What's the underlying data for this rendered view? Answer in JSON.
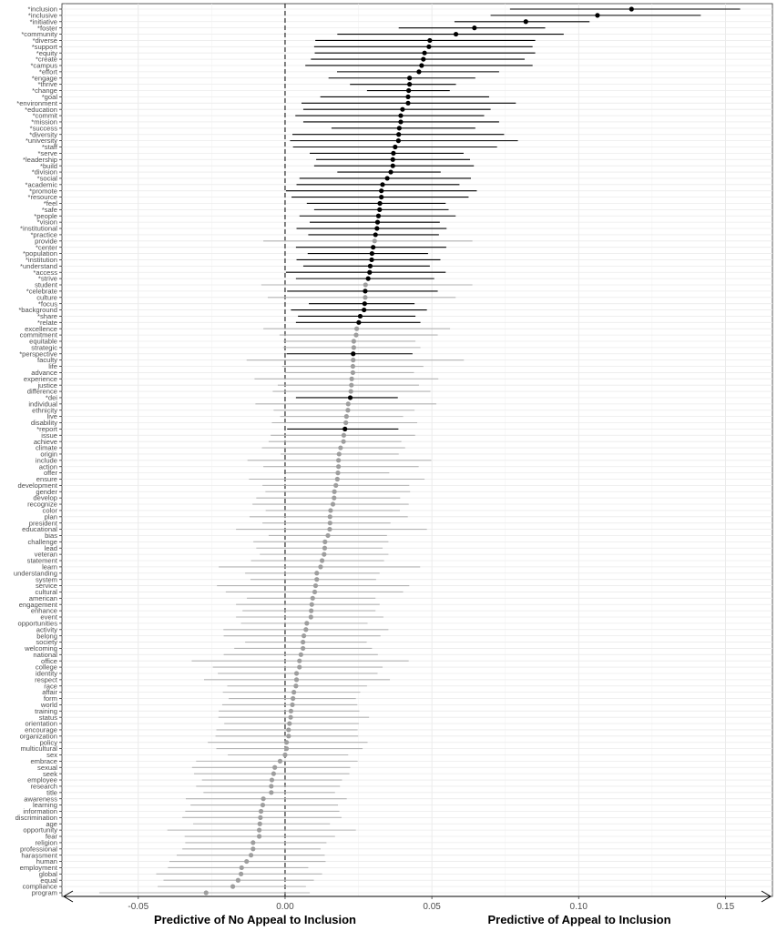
{
  "chart_data": {
    "type": "forest",
    "xlabel_left": "Predictive of No Appeal to Inclusion",
    "xlabel_right": "Predictive of Appeal to Inclusion",
    "xlim": [
      -0.076,
      0.166
    ],
    "xticks": [
      -0.05,
      0.0,
      0.05,
      0.1,
      0.15
    ],
    "xtick_labels": [
      "-0.05",
      "0.00",
      "0.05",
      "0.10",
      "0.15"
    ],
    "reference_line": 0,
    "grid": true,
    "colors": {
      "significant": "#000000",
      "not_significant_point": "#9e9e9e",
      "not_significant_line": "#b3b3b3"
    },
    "terms": [
      "*inclusion",
      "*inclusive",
      "*initiative",
      "*foster",
      "*community",
      "*diverse",
      "*support",
      "*equity",
      "*create",
      "*campus",
      "*effort",
      "*engage",
      "*thrive",
      "*change",
      "*goal",
      "*environment",
      "*education",
      "*commit",
      "*mission",
      "*success",
      "*diversity",
      "*university",
      "*staff",
      "*serve",
      "*leadership",
      "*build",
      "*division",
      "*social",
      "*academic",
      "*promote",
      "*resource",
      "*feel",
      "*safe",
      "*people",
      "*vision",
      "*institutional",
      "*practice",
      "provide",
      "*center",
      "*population",
      "*institution",
      "*understand",
      "*access",
      "*strive",
      "student",
      "*celebrate",
      "culture",
      "*focus",
      "*background",
      "*share",
      "*relate",
      "excellence",
      "commitment",
      "equitable",
      "strategic",
      "*perspective",
      "faculty",
      "life",
      "advance",
      "experience",
      "justice",
      "difference",
      "*dei",
      "individual",
      "ethnicity",
      "live",
      "disability",
      "*report",
      "issue",
      "achieve",
      "climate",
      "origin",
      "include",
      "action",
      "offer",
      "ensure",
      "development",
      "gender",
      "develop",
      "recognize",
      "color",
      "plan",
      "president",
      "educational",
      "bias",
      "challenge",
      "lead",
      "veteran",
      "statement",
      "learn",
      "understanding",
      "system",
      "service",
      "cultural",
      "american",
      "engagement",
      "enhance",
      "event",
      "opportunities",
      "activity",
      "belong",
      "society",
      "welcoming",
      "national",
      "office",
      "college",
      "identity",
      "respect",
      "race",
      "affair",
      "form",
      "world",
      "training",
      "status",
      "orientation",
      "encourage",
      "organization",
      "policy",
      "multicultural",
      "sex",
      "embrace",
      "sexual",
      "seek",
      "employee",
      "research",
      "title",
      "awareness",
      "learning",
      "information",
      "discrimination",
      "age",
      "opportunity",
      "fear",
      "religion",
      "professional",
      "harassment",
      "human",
      "employment",
      "global",
      "equal",
      "compliance",
      "program"
    ],
    "estimate": [
      0.118,
      0.1064,
      0.082,
      0.0645,
      0.0582,
      0.0493,
      0.049,
      0.0475,
      0.0471,
      0.0465,
      0.0456,
      0.0424,
      0.0424,
      0.0421,
      0.0419,
      0.0419,
      0.04,
      0.0394,
      0.0394,
      0.0389,
      0.0387,
      0.0386,
      0.0375,
      0.0369,
      0.0367,
      0.0367,
      0.036,
      0.0348,
      0.0332,
      0.0328,
      0.0328,
      0.0323,
      0.0322,
      0.0318,
      0.0315,
      0.0313,
      0.0308,
      0.0305,
      0.03,
      0.0296,
      0.0295,
      0.029,
      0.0288,
      0.0283,
      0.0274,
      0.0273,
      0.0273,
      0.0271,
      0.0269,
      0.0256,
      0.0251,
      0.0244,
      0.0242,
      0.0234,
      0.0234,
      0.0232,
      0.0232,
      0.0231,
      0.0231,
      0.0227,
      0.0226,
      0.0224,
      0.0222,
      0.0215,
      0.0214,
      0.0209,
      0.0207,
      0.0204,
      0.02,
      0.0199,
      0.0189,
      0.0184,
      0.0182,
      0.0182,
      0.018,
      0.0178,
      0.0173,
      0.0168,
      0.0167,
      0.0163,
      0.0155,
      0.0153,
      0.0153,
      0.0152,
      0.0146,
      0.0136,
      0.0135,
      0.0133,
      0.0126,
      0.0121,
      0.0108,
      0.0108,
      0.0104,
      0.0101,
      0.0094,
      0.0091,
      0.0089,
      0.0088,
      0.0074,
      0.0071,
      0.0064,
      0.0061,
      0.0061,
      0.0054,
      0.0049,
      0.0049,
      0.0039,
      0.0039,
      0.0037,
      0.003,
      0.0027,
      0.0025,
      0.002,
      0.0019,
      0.0015,
      0.0012,
      0.0012,
      0.0005,
      0.0005,
      0.0,
      -0.0017,
      -0.0035,
      -0.0039,
      -0.0045,
      -0.0047,
      -0.0047,
      -0.0074,
      -0.0076,
      -0.0082,
      -0.0084,
      -0.0086,
      -0.0088,
      -0.0088,
      -0.0109,
      -0.0109,
      -0.0116,
      -0.0131,
      -0.0148,
      -0.015,
      -0.016,
      -0.0178,
      -0.0269
    ],
    "ci_low": [
      0.0766,
      0.07,
      0.0577,
      0.0387,
      0.0178,
      0.0103,
      0.0099,
      0.0101,
      0.0088,
      0.0069,
      0.0177,
      0.0148,
      0.0221,
      0.0279,
      0.012,
      0.0056,
      0.0062,
      0.0035,
      0.0062,
      0.0158,
      0.0025,
      0.0017,
      0.0027,
      0.0084,
      0.0106,
      0.0099,
      0.0178,
      0.0049,
      0.0039,
      0.0003,
      0.0022,
      0.0074,
      0.0099,
      0.0049,
      0.0084,
      0.0039,
      0.0079,
      -0.0074,
      0.0037,
      0.0077,
      0.0039,
      0.0062,
      0.0003,
      0.0037,
      -0.0081,
      0.0007,
      -0.0059,
      0.0081,
      0.002,
      0.0044,
      0.0037,
      -0.0074,
      -0.0019,
      -0.0005,
      -0.0007,
      0.0005,
      -0.0131,
      -0.001,
      0.0,
      -0.0104,
      -0.0025,
      -0.0042,
      0.0037,
      -0.0101,
      -0.0039,
      -0.0017,
      -0.0045,
      0.0007,
      -0.0049,
      -0.0056,
      -0.0079,
      -0.0015,
      -0.0128,
      -0.0074,
      0.0003,
      -0.0123,
      -0.0077,
      -0.0067,
      -0.0098,
      -0.0111,
      -0.0066,
      -0.0121,
      -0.0077,
      -0.0167,
      -0.0056,
      -0.0108,
      -0.0098,
      -0.0086,
      -0.0116,
      -0.0226,
      -0.0136,
      -0.0118,
      -0.0232,
      -0.0202,
      -0.013,
      -0.0167,
      -0.0145,
      -0.0167,
      -0.015,
      -0.021,
      -0.0209,
      -0.0136,
      -0.0173,
      -0.0209,
      -0.0318,
      -0.0246,
      -0.0229,
      -0.0276,
      -0.0197,
      -0.0212,
      -0.0192,
      -0.0214,
      -0.0226,
      -0.0227,
      -0.0207,
      -0.0234,
      -0.0237,
      -0.0263,
      -0.0234,
      -0.0195,
      -0.0303,
      -0.0317,
      -0.031,
      -0.0283,
      -0.0303,
      -0.0278,
      -0.0338,
      -0.0322,
      -0.034,
      -0.035,
      -0.0313,
      -0.0401,
      -0.0342,
      -0.034,
      -0.035,
      -0.0369,
      -0.0394,
      -0.0399,
      -0.0439,
      -0.0414,
      -0.0434,
      -0.0633
    ],
    "ci_high": [
      0.155,
      0.1416,
      0.1037,
      0.0886,
      0.0949,
      0.0852,
      0.0843,
      0.0852,
      0.0816,
      0.0843,
      0.0729,
      0.0648,
      0.0582,
      0.0561,
      0.0695,
      0.0786,
      0.07,
      0.0678,
      0.0729,
      0.0648,
      0.0746,
      0.0793,
      0.0722,
      0.0608,
      0.063,
      0.0643,
      0.053,
      0.0633,
      0.0594,
      0.0653,
      0.0625,
      0.0547,
      0.0557,
      0.0581,
      0.0527,
      0.055,
      0.0524,
      0.0638,
      0.0549,
      0.0487,
      0.0529,
      0.0493,
      0.0547,
      0.0508,
      0.0638,
      0.052,
      0.0581,
      0.0441,
      0.0483,
      0.0444,
      0.0461,
      0.0562,
      0.052,
      0.0444,
      0.0461,
      0.0434,
      0.0609,
      0.0471,
      0.0439,
      0.0522,
      0.0456,
      0.0495,
      0.0384,
      0.0515,
      0.0441,
      0.0402,
      0.045,
      0.0386,
      0.0443,
      0.0396,
      0.0409,
      0.0387,
      0.0498,
      0.0455,
      0.0355,
      0.0475,
      0.0423,
      0.0426,
      0.0392,
      0.0421,
      0.0391,
      0.0418,
      0.0359,
      0.0483,
      0.0347,
      0.0352,
      0.0332,
      0.0352,
      0.0337,
      0.046,
      0.0322,
      0.031,
      0.0423,
      0.0402,
      0.0308,
      0.0322,
      0.0308,
      0.0335,
      0.0281,
      0.0352,
      0.0325,
      0.0278,
      0.0296,
      0.0316,
      0.0421,
      0.0332,
      0.0315,
      0.0357,
      0.0279,
      0.0256,
      0.0241,
      0.0246,
      0.0253,
      0.0286,
      0.0251,
      0.0247,
      0.0249,
      0.0281,
      0.0264,
      0.0215,
      0.0247,
      0.0222,
      0.0219,
      0.0194,
      0.0187,
      0.017,
      0.021,
      0.018,
      0.0185,
      0.0192,
      0.0153,
      0.0241,
      0.017,
      0.0141,
      0.0121,
      0.0135,
      0.0138,
      0.0079,
      0.0126,
      0.0098,
      0.0071,
      0.0084
    ]
  }
}
